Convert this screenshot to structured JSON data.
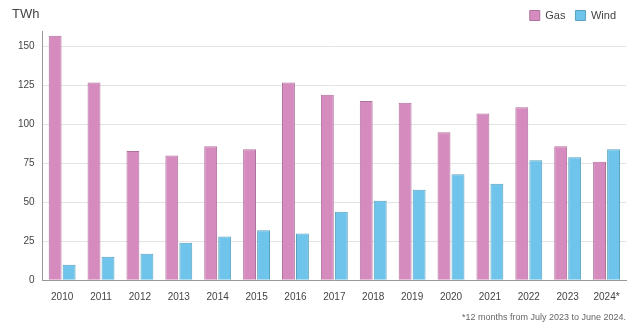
{
  "chart_data": {
    "type": "bar",
    "y_label": "TWh",
    "note": "*12 months from July 2023 to June 2024.",
    "categories": [
      "2010",
      "2011",
      "2012",
      "2013",
      "2014",
      "2015",
      "2016",
      "2017",
      "2018",
      "2019",
      "2020",
      "2021",
      "2022",
      "2023",
      "2024*"
    ],
    "series": [
      {
        "name": "Gas",
        "color": "#d68bbf",
        "values": [
          157,
          127,
          83,
          80,
          86,
          84,
          127,
          119,
          115,
          114,
          95,
          107,
          111,
          86,
          76
        ]
      },
      {
        "name": "Wind",
        "color": "#6ec4ea",
        "values": [
          10,
          15,
          17,
          24,
          28,
          32,
          30,
          44,
          51,
          58,
          68,
          62,
          77,
          79,
          84
        ]
      }
    ],
    "ylim": [
      0,
      160
    ],
    "yticks": [
      0,
      25,
      50,
      75,
      100,
      125,
      150
    ],
    "grid": true,
    "legend": "top-right"
  }
}
